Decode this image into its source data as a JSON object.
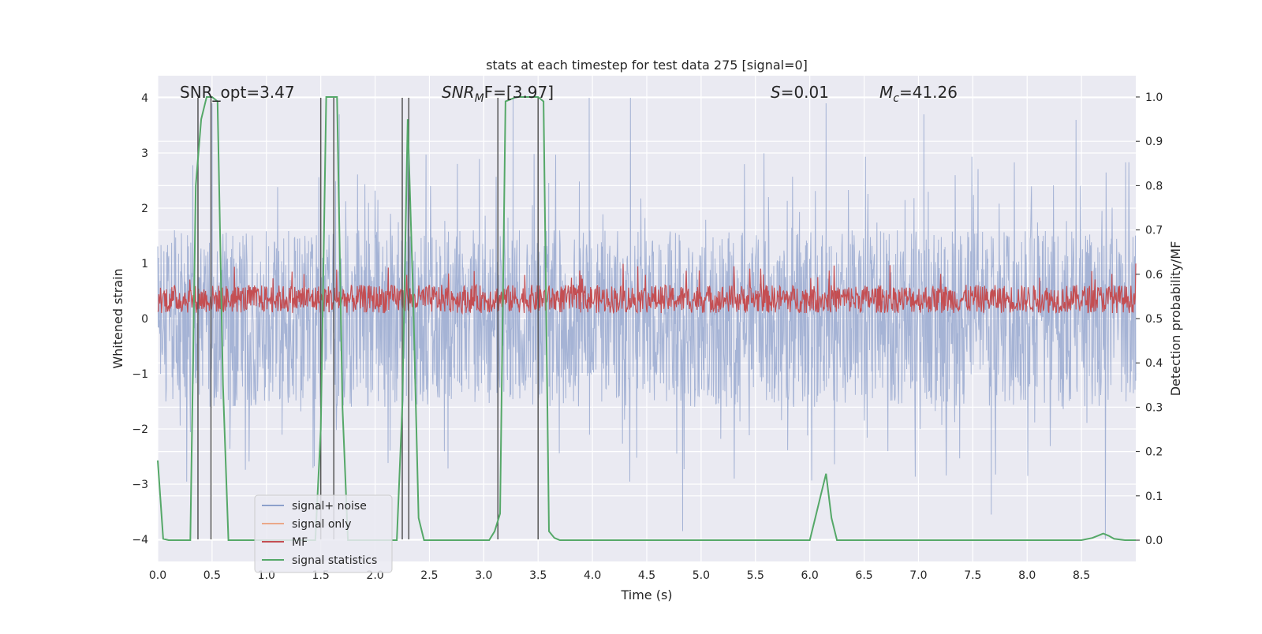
{
  "chart_data": {
    "type": "line",
    "title": "stats at each timestep for test data 275 [signal=0]",
    "xlabel": "Time (s)",
    "ylabel": "Whitened strain",
    "y2label": "Detection probability/MF",
    "xlim": [
      0,
      9.0
    ],
    "ylim": [
      -4.4,
      4.4
    ],
    "y2lim": [
      -0.048,
      1.048
    ],
    "x_ticks": [
      0.0,
      0.5,
      1.0,
      1.5,
      2.0,
      2.5,
      3.0,
      3.5,
      4.0,
      4.5,
      5.0,
      5.5,
      6.0,
      6.5,
      7.0,
      7.5,
      8.0,
      8.5
    ],
    "x_tick_labels": [
      "0.0",
      "0.5",
      "1.0",
      "1.5",
      "2.0",
      "2.5",
      "3.0",
      "3.5",
      "4.0",
      "4.5",
      "5.0",
      "5.5",
      "6.0",
      "6.5",
      "7.0",
      "7.5",
      "8.0",
      "8.5"
    ],
    "y_ticks": [
      4,
      3,
      2,
      1,
      0,
      -1,
      -2,
      -3,
      -4
    ],
    "y_tick_labels": [
      "4",
      "3",
      "2",
      "1",
      "0",
      "−1",
      "−2",
      "−3",
      "−4"
    ],
    "y2_ticks": [
      1.0,
      0.9,
      0.8,
      0.7,
      0.6,
      0.5,
      0.4,
      0.3,
      0.2,
      0.1,
      0.0
    ],
    "y2_tick_labels": [
      "1.0",
      "0.9",
      "0.8",
      "0.7",
      "0.6",
      "0.5",
      "0.4",
      "0.3",
      "0.2",
      "0.1",
      "0.0"
    ],
    "grid": true,
    "background": "#eaeaf2",
    "annotations": {
      "snr_opt": "SNR_opt=3.47",
      "snr_mf_main": "SNR",
      "snr_mf_sub": "M",
      "snr_mf_rest": "F=[3.97]",
      "s_var": "S",
      "s_val": "=0.01",
      "mc_var": "M",
      "mc_sub": "c",
      "mc_val": "=41.26"
    },
    "legend": {
      "position": "lower-left",
      "entries": [
        {
          "label": "signal+ noise",
          "color": "#8da0cb"
        },
        {
          "label": "signal only",
          "color": "#eba889"
        },
        {
          "label": "MF",
          "color": "#c44e52"
        },
        {
          "label": "signal statistics",
          "color": "#55a868"
        }
      ]
    },
    "series": [
      {
        "name": "signal+ noise",
        "axis": "left",
        "color": "#8da0cb",
        "description_type": "noise",
        "envelope_approx": {
          "typical_high": 1.6,
          "typical_low": -1.6,
          "spike_high": 4.0,
          "spike_low": -3.9
        },
        "notable_spikes": [
          [
            0.5,
            3.9
          ],
          [
            1.67,
            3.7
          ],
          [
            2.3,
            3.6
          ],
          [
            3.27,
            4.0
          ],
          [
            3.97,
            4.0
          ],
          [
            4.35,
            4.0
          ],
          [
            6.15,
            3.9
          ],
          [
            7.05,
            3.7
          ],
          [
            8.45,
            3.6
          ],
          [
            4.83,
            -3.85
          ],
          [
            8.72,
            -4.0
          ],
          [
            7.67,
            -3.55
          ]
        ]
      },
      {
        "name": "MF",
        "axis": "left",
        "color": "#c44e52",
        "description_type": "noise",
        "band_approx": {
          "center": 0.35,
          "low": 0.1,
          "high": 0.7,
          "spike_high": 1.0
        }
      },
      {
        "name": "signal statistics",
        "axis": "right",
        "color": "#55a868",
        "x": [
          0.0,
          0.05,
          0.1,
          0.15,
          0.2,
          0.25,
          0.3,
          0.35,
          0.4,
          0.45,
          0.5,
          0.55,
          0.6,
          0.65,
          0.7,
          0.8,
          0.9,
          1.0,
          1.1,
          1.2,
          1.3,
          1.4,
          1.45,
          1.5,
          1.55,
          1.6,
          1.65,
          1.7,
          1.75,
          1.8,
          1.9,
          2.0,
          2.1,
          2.2,
          2.25,
          2.3,
          2.35,
          2.4,
          2.45,
          2.5,
          2.7,
          2.9,
          3.05,
          3.1,
          3.15,
          3.2,
          3.3,
          3.4,
          3.5,
          3.55,
          3.6,
          3.65,
          3.7,
          3.9,
          4.5,
          5.0,
          5.5,
          5.9,
          6.0,
          6.05,
          6.1,
          6.15,
          6.2,
          6.25,
          6.3,
          6.5,
          7.0,
          7.5,
          8.0,
          8.5,
          8.6,
          8.65,
          8.7,
          8.75,
          8.8,
          8.9,
          9.0
        ],
        "values": [
          0.18,
          0.003,
          0.0,
          0.0,
          0.0,
          0.0,
          0.0,
          0.8,
          0.95,
          1.0,
          1.0,
          0.99,
          0.35,
          0.0,
          0.0,
          0.0,
          0.0,
          0.0,
          0.0,
          0.0,
          0.0,
          0.0,
          0.0,
          0.25,
          1.0,
          1.0,
          1.0,
          0.3,
          0.0,
          0.0,
          0.0,
          0.0,
          0.0,
          0.0,
          0.3,
          0.95,
          0.55,
          0.05,
          0.0,
          0.0,
          0.0,
          0.0,
          0.0,
          0.02,
          0.06,
          0.99,
          1.0,
          1.0,
          1.0,
          0.99,
          0.02,
          0.005,
          0.0,
          0.0,
          0.0,
          0.0,
          0.0,
          0.0,
          0.0,
          0.05,
          0.1,
          0.15,
          0.05,
          0.0,
          0.0,
          0.0,
          0.0,
          0.0,
          0.0,
          0.0,
          0.005,
          0.01,
          0.015,
          0.01,
          0.003,
          0.0,
          0.0
        ]
      }
    ],
    "vertical_markers": {
      "color": "#555555",
      "x": [
        0.37,
        0.49,
        1.5,
        1.62,
        2.25,
        2.31,
        3.13,
        3.5
      ]
    }
  }
}
